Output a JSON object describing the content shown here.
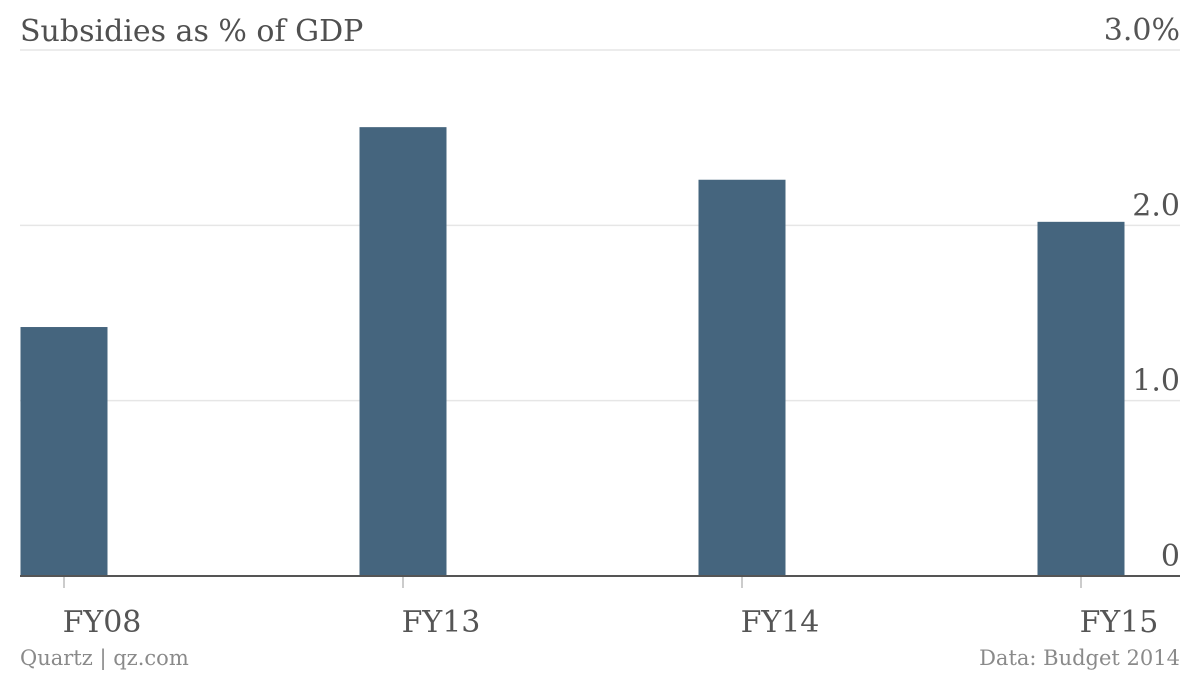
{
  "title": "Subsidies as % of GDP",
  "footer": {
    "credit": "Quartz | qz.com",
    "source": "Data: Budget 2014"
  },
  "colors": {
    "bar": "#45657e",
    "grid": "#e6e6e6",
    "axis": "#555555",
    "text": "#555555"
  },
  "chart_data": {
    "type": "bar",
    "categories": [
      "FY08",
      "FY13",
      "FY14",
      "FY15"
    ],
    "values": [
      1.42,
      2.56,
      2.26,
      2.02
    ],
    "ylim": [
      0,
      3.0
    ],
    "y_ticks": [
      {
        "value": 0,
        "label": "0"
      },
      {
        "value": 1.0,
        "label": "1.0"
      },
      {
        "value": 2.0,
        "label": "2.0"
      },
      {
        "value": 3.0,
        "label": "3.0%"
      }
    ],
    "y_axis_position": "right",
    "grid": true,
    "legend": "none"
  }
}
